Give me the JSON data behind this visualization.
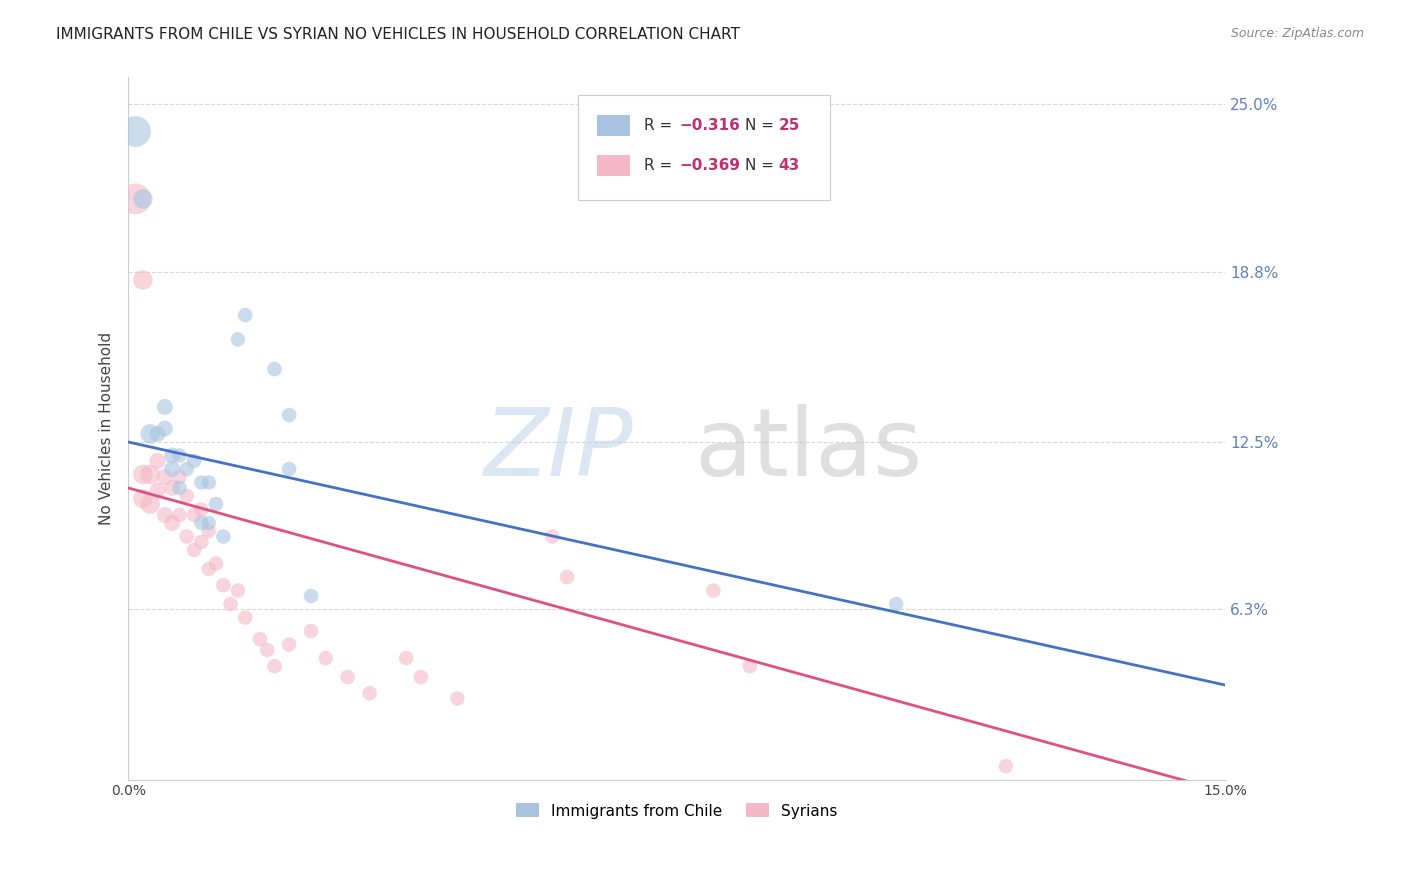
{
  "title": "IMMIGRANTS FROM CHILE VS SYRIAN NO VEHICLES IN HOUSEHOLD CORRELATION CHART",
  "source": "Source: ZipAtlas.com",
  "ylabel": "No Vehicles in Household",
  "xlim": [
    0.0,
    0.15
  ],
  "ylim": [
    0.0,
    0.26
  ],
  "xticks": [
    0.0,
    0.03,
    0.06,
    0.09,
    0.12,
    0.15
  ],
  "xtick_labels": [
    "0.0%",
    "",
    "",
    "",
    "",
    "15.0%"
  ],
  "ytick_labels_right": [
    "25.0%",
    "18.8%",
    "12.5%",
    "6.3%"
  ],
  "yticks_right": [
    0.25,
    0.188,
    0.125,
    0.063
  ],
  "chile_color": "#a8c4e0",
  "chile_line_color": "#4472c4",
  "syrian_color": "#f4b8c8",
  "syrian_line_color": "#e05080",
  "background_color": "#ffffff",
  "grid_color": "#d8d8d8",
  "title_fontsize": 11,
  "right_label_color": "#6080c0",
  "marker_alpha": 0.6,
  "chile_line_intercept": 0.125,
  "chile_line_slope": -0.6,
  "syrian_line_intercept": 0.108,
  "syrian_line_slope": -0.75,
  "chile_points": [
    [
      0.001,
      0.24
    ],
    [
      0.002,
      0.215
    ],
    [
      0.003,
      0.128
    ],
    [
      0.004,
      0.128
    ],
    [
      0.005,
      0.138
    ],
    [
      0.005,
      0.13
    ],
    [
      0.006,
      0.12
    ],
    [
      0.006,
      0.115
    ],
    [
      0.007,
      0.12
    ],
    [
      0.007,
      0.108
    ],
    [
      0.008,
      0.115
    ],
    [
      0.009,
      0.118
    ],
    [
      0.01,
      0.11
    ],
    [
      0.01,
      0.095
    ],
    [
      0.011,
      0.11
    ],
    [
      0.011,
      0.095
    ],
    [
      0.012,
      0.102
    ],
    [
      0.013,
      0.09
    ],
    [
      0.015,
      0.163
    ],
    [
      0.016,
      0.172
    ],
    [
      0.02,
      0.152
    ],
    [
      0.022,
      0.135
    ],
    [
      0.022,
      0.115
    ],
    [
      0.025,
      0.068
    ],
    [
      0.105,
      0.065
    ]
  ],
  "syrian_points": [
    [
      0.001,
      0.215
    ],
    [
      0.002,
      0.185
    ],
    [
      0.002,
      0.113
    ],
    [
      0.002,
      0.104
    ],
    [
      0.003,
      0.113
    ],
    [
      0.003,
      0.102
    ],
    [
      0.004,
      0.118
    ],
    [
      0.004,
      0.107
    ],
    [
      0.005,
      0.112
    ],
    [
      0.005,
      0.098
    ],
    [
      0.006,
      0.108
    ],
    [
      0.006,
      0.095
    ],
    [
      0.007,
      0.112
    ],
    [
      0.007,
      0.098
    ],
    [
      0.008,
      0.105
    ],
    [
      0.008,
      0.09
    ],
    [
      0.009,
      0.098
    ],
    [
      0.009,
      0.085
    ],
    [
      0.01,
      0.1
    ],
    [
      0.01,
      0.088
    ],
    [
      0.011,
      0.092
    ],
    [
      0.011,
      0.078
    ],
    [
      0.012,
      0.08
    ],
    [
      0.013,
      0.072
    ],
    [
      0.014,
      0.065
    ],
    [
      0.015,
      0.07
    ],
    [
      0.016,
      0.06
    ],
    [
      0.018,
      0.052
    ],
    [
      0.019,
      0.048
    ],
    [
      0.02,
      0.042
    ],
    [
      0.022,
      0.05
    ],
    [
      0.025,
      0.055
    ],
    [
      0.027,
      0.045
    ],
    [
      0.03,
      0.038
    ],
    [
      0.033,
      0.032
    ],
    [
      0.038,
      0.045
    ],
    [
      0.04,
      0.038
    ],
    [
      0.045,
      0.03
    ],
    [
      0.058,
      0.09
    ],
    [
      0.06,
      0.075
    ],
    [
      0.08,
      0.07
    ],
    [
      0.085,
      0.042
    ],
    [
      0.12,
      0.005
    ]
  ]
}
